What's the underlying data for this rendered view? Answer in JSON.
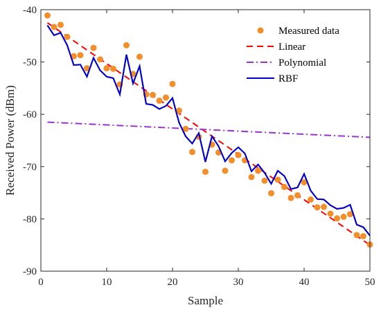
{
  "chart_data": {
    "type": "line",
    "xlabel": "Sample",
    "ylabel": "Received Power (dBm)",
    "xlim": [
      0,
      50
    ],
    "ylim": [
      -90,
      -40
    ],
    "xticks": [
      0,
      10,
      20,
      30,
      40,
      50
    ],
    "yticks": [
      -90,
      -80,
      -70,
      -60,
      -50,
      -40
    ],
    "grid": false,
    "legend_position": "top-right",
    "series": [
      {
        "name": "Measured data",
        "kind": "scatter",
        "color": "#f28e2b",
        "x": [
          1,
          2,
          3,
          4,
          5,
          6,
          7,
          8,
          9,
          10,
          11,
          12,
          13,
          14,
          15,
          16,
          17,
          18,
          19,
          20,
          21,
          22,
          23,
          24,
          25,
          26,
          27,
          28,
          29,
          30,
          31,
          32,
          33,
          34,
          35,
          36,
          37,
          38,
          39,
          40,
          41,
          42,
          43,
          44,
          45,
          46,
          47,
          48,
          49,
          50
        ],
        "y": [
          -41.1,
          -43.3,
          -42.9,
          -45.2,
          -48.9,
          -48.7,
          -51.2,
          -47.3,
          -49.5,
          -51.2,
          -51.3,
          -54.3,
          -46.8,
          -52.3,
          -49.0,
          -56.2,
          -56.3,
          -57.4,
          -56.8,
          -54.2,
          -59.3,
          -62.8,
          -67.2,
          -64.3,
          -71.0,
          -65.8,
          -67.3,
          -70.8,
          -68.8,
          -67.8,
          -68.8,
          -72.0,
          -70.8,
          -72.7,
          -75.1,
          -72.5,
          -73.9,
          -76.0,
          -75.5,
          -73.0,
          -76.3,
          -77.8,
          -77.7,
          -79.0,
          -79.9,
          -79.6,
          -79.1,
          -83.1,
          -83.3,
          -84.9
        ]
      },
      {
        "name": "Linear",
        "kind": "line",
        "style": "dashed",
        "color": "#ff0000",
        "x": [
          1,
          50
        ],
        "y": [
          -42.5,
          -85.0
        ]
      },
      {
        "name": "Polynomial",
        "kind": "line",
        "style": "dashdot",
        "color": "#9932cc",
        "x": [
          1,
          50
        ],
        "y": [
          -61.5,
          -64.4
        ]
      },
      {
        "name": "RBF",
        "kind": "line",
        "style": "solid",
        "color": "#0000c8",
        "x": [
          1,
          2,
          3,
          4,
          5,
          6,
          7,
          8,
          9,
          10,
          11,
          12,
          13,
          14,
          15,
          16,
          17,
          18,
          19,
          20,
          21,
          22,
          23,
          24,
          25,
          26,
          27,
          28,
          29,
          30,
          31,
          32,
          33,
          34,
          35,
          36,
          37,
          38,
          39,
          40,
          41,
          42,
          43,
          44,
          45,
          46,
          47,
          48,
          49,
          50
        ],
        "y": [
          -43.0,
          -44.9,
          -44.4,
          -46.8,
          -50.6,
          -50.5,
          -52.8,
          -49.2,
          -51.6,
          -52.8,
          -53.1,
          -56.2,
          -48.6,
          -54.1,
          -50.8,
          -58.0,
          -58.2,
          -59.0,
          -58.4,
          -56.9,
          -61.6,
          -64.2,
          -65.6,
          -63.6,
          -69.1,
          -64.2,
          -66.1,
          -69.0,
          -67.4,
          -66.3,
          -67.5,
          -70.9,
          -69.6,
          -71.2,
          -73.3,
          -70.8,
          -71.8,
          -74.3,
          -74.0,
          -71.4,
          -74.6,
          -76.2,
          -76.3,
          -77.4,
          -78.1,
          -77.9,
          -77.3,
          -81.1,
          -81.6,
          -83.2
        ]
      }
    ]
  }
}
